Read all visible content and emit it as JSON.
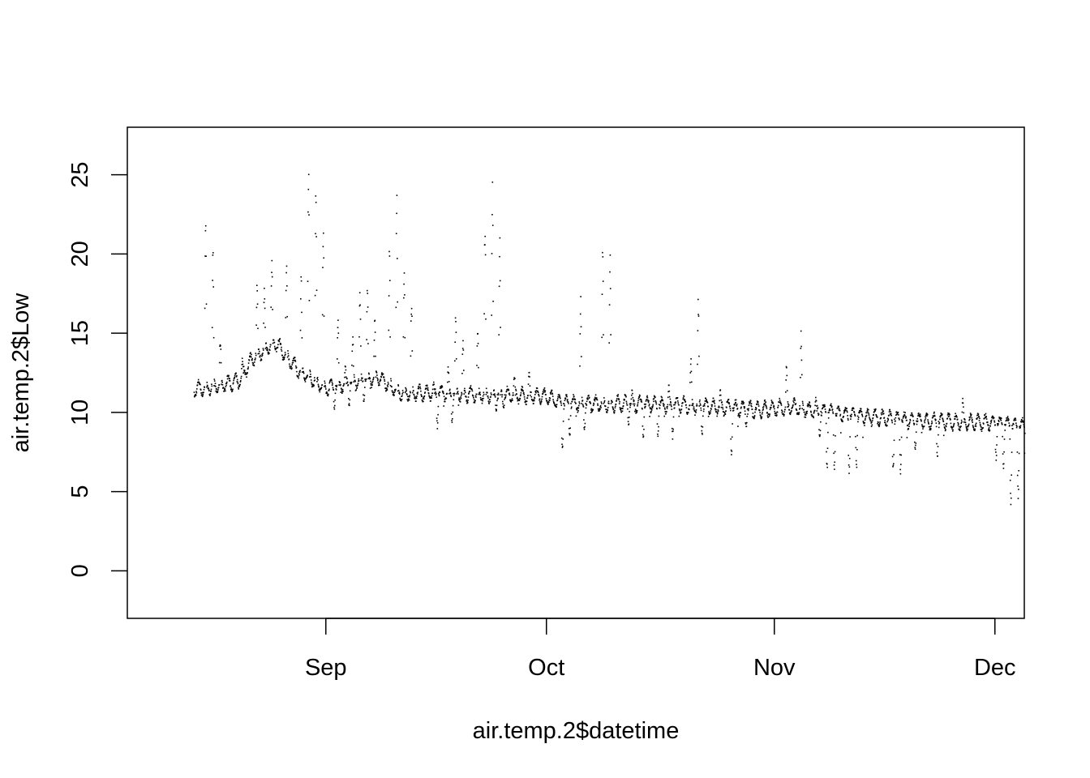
{
  "chart_data": {
    "type": "scatter",
    "xlabel": "air.temp.2$datetime",
    "ylabel": "air.temp.2$Low",
    "x_ticks": [
      {
        "label": "Sep",
        "date": "2015-09-01"
      },
      {
        "label": "Oct",
        "date": "2015-10-01"
      },
      {
        "label": "Nov",
        "date": "2015-11-01"
      },
      {
        "label": "Dec",
        "date": "2015-12-01"
      }
    ],
    "y_ticks": [
      0,
      5,
      10,
      15,
      20,
      25
    ],
    "xlim": [
      "2015-08-05",
      "2015-12-05"
    ],
    "ylim": [
      -3,
      28
    ],
    "grid": false,
    "legend": "none",
    "point_color": "#000000",
    "sample_interval_hours": 1,
    "series": [
      {
        "x_start": "2015-08-14",
        "x_end": "2015-12-05",
        "baseline_knots": [
          [
            "2015-08-14",
            11.5
          ],
          [
            "2015-08-20",
            12.0
          ],
          [
            "2015-08-22",
            13.5
          ],
          [
            "2015-08-25",
            14.5
          ],
          [
            "2015-08-28",
            12.8
          ],
          [
            "2015-09-01",
            11.6
          ],
          [
            "2015-09-05",
            12.0
          ],
          [
            "2015-09-08",
            12.3
          ],
          [
            "2015-09-11",
            11.3
          ],
          [
            "2015-09-20",
            11.2
          ],
          [
            "2015-09-30",
            11.1
          ],
          [
            "2015-10-01",
            11.0
          ],
          [
            "2015-10-03",
            10.6
          ],
          [
            "2015-10-10",
            10.6
          ],
          [
            "2015-10-20",
            10.5
          ],
          [
            "2015-10-30",
            10.2
          ],
          [
            "2015-11-03",
            10.4
          ],
          [
            "2015-11-10",
            9.9
          ],
          [
            "2015-11-20",
            9.5
          ],
          [
            "2015-11-30",
            9.4
          ],
          [
            "2015-12-05",
            9.1
          ]
        ],
        "peaks": [
          [
            "2015-08-15",
            24.1
          ],
          [
            "2015-08-16",
            20.4
          ],
          [
            "2015-08-17",
            15.0
          ],
          [
            "2015-08-20",
            13.5
          ],
          [
            "2015-08-22",
            18.5
          ],
          [
            "2015-08-23",
            18.0
          ],
          [
            "2015-08-24",
            20.3
          ],
          [
            "2015-08-26",
            20.0
          ],
          [
            "2015-08-28",
            19.0
          ],
          [
            "2015-08-29",
            27.0
          ],
          [
            "2015-08-30",
            26.5
          ],
          [
            "2015-08-31",
            22.5
          ],
          [
            "2015-09-02",
            16.0
          ],
          [
            "2015-09-03",
            13.0
          ],
          [
            "2015-09-04",
            15.0
          ],
          [
            "2015-09-05",
            18.5
          ],
          [
            "2015-09-06",
            18.7
          ],
          [
            "2015-09-07",
            16.0
          ],
          [
            "2015-09-09",
            20.5
          ],
          [
            "2015-09-10",
            25.5
          ],
          [
            "2015-09-11",
            19.5
          ],
          [
            "2015-09-12",
            18.0
          ],
          [
            "2015-09-15",
            12.0
          ],
          [
            "2015-09-17",
            13.0
          ],
          [
            "2015-09-18",
            16.5
          ],
          [
            "2015-09-19",
            15.0
          ],
          [
            "2015-09-21",
            15.5
          ],
          [
            "2015-09-22",
            24.0
          ],
          [
            "2015-09-23",
            25.0
          ],
          [
            "2015-09-24",
            22.5
          ],
          [
            "2015-09-26",
            12.5
          ],
          [
            "2015-09-28",
            12.8
          ],
          [
            "2015-10-05",
            17.7
          ],
          [
            "2015-10-08",
            22.0
          ],
          [
            "2015-10-09",
            21.0
          ],
          [
            "2015-10-12",
            11.5
          ],
          [
            "2015-10-17",
            11.8
          ],
          [
            "2015-10-20",
            14.0
          ],
          [
            "2015-10-21",
            17.7
          ],
          [
            "2015-10-24",
            11.5
          ],
          [
            "2015-11-02",
            13.2
          ],
          [
            "2015-11-04",
            15.3
          ],
          [
            "2015-11-06",
            11.0
          ],
          [
            "2015-11-26",
            11.0
          ]
        ],
        "dips": [
          [
            "2015-09-02",
            10.2
          ],
          [
            "2015-09-04",
            10.3
          ],
          [
            "2015-09-06",
            10.5
          ],
          [
            "2015-09-16",
            9.0
          ],
          [
            "2015-09-18",
            9.2
          ],
          [
            "2015-09-24",
            10.0
          ],
          [
            "2015-09-25",
            10.2
          ],
          [
            "2015-10-03",
            7.4
          ],
          [
            "2015-10-04",
            8.2
          ],
          [
            "2015-10-06",
            8.8
          ],
          [
            "2015-10-12",
            9.2
          ],
          [
            "2015-10-14",
            8.3
          ],
          [
            "2015-10-16",
            8.5
          ],
          [
            "2015-10-18",
            8.3
          ],
          [
            "2015-10-22",
            8.4
          ],
          [
            "2015-10-26",
            7.3
          ],
          [
            "2015-10-28",
            9.0
          ],
          [
            "2015-11-07",
            8.2
          ],
          [
            "2015-11-08",
            6.1
          ],
          [
            "2015-11-09",
            6.2
          ],
          [
            "2015-11-11",
            6.0
          ],
          [
            "2015-11-12",
            6.3
          ],
          [
            "2015-11-17",
            6.1
          ],
          [
            "2015-11-18",
            6.0
          ],
          [
            "2015-11-20",
            7.5
          ],
          [
            "2015-11-23",
            7.0
          ],
          [
            "2015-12-01",
            7.0
          ],
          [
            "2015-12-02",
            6.5
          ],
          [
            "2015-12-03",
            4.2
          ],
          [
            "2015-12-04",
            4.5
          ]
        ]
      }
    ]
  }
}
